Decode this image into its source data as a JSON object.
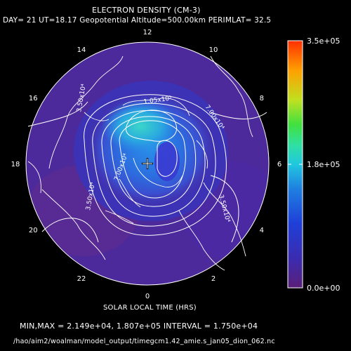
{
  "chart_data": {
    "type": "heatmap",
    "projection": "polar (north pole)",
    "title": "ELECTRON DENSITY (CM-3)",
    "subtitle": "DAY= 21 UT=18.17 Geopotential Altitude=500.00km PERIMLAT= 32.5",
    "xlabel": "SOLAR LOCAL TIME (HRS)",
    "hour_labels": [
      {
        "hour": 12,
        "text": "12"
      },
      {
        "hour": 10,
        "text": "10"
      },
      {
        "hour": 8,
        "text": "8"
      },
      {
        "hour": 6,
        "text": "6"
      },
      {
        "hour": 4,
        "text": "4"
      },
      {
        "hour": 2,
        "text": "2"
      },
      {
        "hour": 0,
        "text": "0"
      },
      {
        "hour": 22,
        "text": "22"
      },
      {
        "hour": 20,
        "text": "20"
      },
      {
        "hour": 18,
        "text": "18"
      },
      {
        "hour": 16,
        "text": "16"
      },
      {
        "hour": 14,
        "text": "14"
      }
    ],
    "contour_labels": [
      "3.50x10⁴",
      "1.05x10⁵",
      "7.00x10⁴",
      "7.00x10⁴",
      "3.50x10⁴",
      "3.50x10⁴"
    ],
    "colorbar": {
      "min": 0,
      "max": 350000,
      "tick_labels": [
        "3.5e+05",
        "1.8e+05",
        "0.0e+00"
      ],
      "colors": [
        "#5a1f78",
        "#3a2cb0",
        "#1f3fd8",
        "#1f7fe0",
        "#20c8e0",
        "#30e0a0",
        "#40e040",
        "#c0e020",
        "#ffa000",
        "#ff3000"
      ]
    },
    "stats": {
      "min": 21490,
      "max": 180700,
      "interval": 17500
    },
    "stats_text": "MIN,MAX =  2.149e+04, 1.807e+05 INTERVAL =  1.750e+04"
  },
  "footer": {
    "path": "/hao/aim2/woalman/model_output/timegcm1.42_amie.s_jan05_dion_062.nc"
  },
  "colors": {
    "background": "#000000",
    "disk_base": "#4d2a9c",
    "coast": "#ffffff"
  }
}
